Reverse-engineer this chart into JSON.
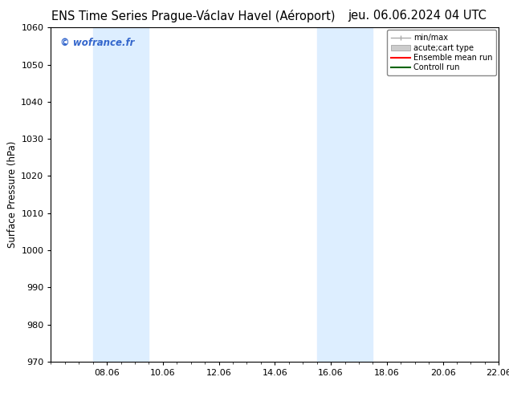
{
  "title_left": "ENS Time Series Prague-Václav Havel (Aéroport)",
  "title_right": "jeu. 06.06.2024 04 UTC",
  "ylabel": "Surface Pressure (hPa)",
  "ylim": [
    970,
    1060
  ],
  "yticks": [
    970,
    980,
    990,
    1000,
    1010,
    1020,
    1030,
    1040,
    1050,
    1060
  ],
  "xtick_labels": [
    "08.06",
    "10.06",
    "12.06",
    "14.06",
    "16.06",
    "18.06",
    "20.06",
    "22.06"
  ],
  "xtick_positions": [
    2,
    4,
    6,
    8,
    10,
    12,
    14,
    16
  ],
  "xlim": [
    0,
    16
  ],
  "shaded_bands": [
    {
      "x_start": 1.5,
      "x_end": 3.5
    },
    {
      "x_start": 9.5,
      "x_end": 11.5
    }
  ],
  "shaded_color": "#ddeeff",
  "watermark_text": "© wofrance.fr",
  "watermark_color": "#3366cc",
  "bg_color": "#ffffff",
  "plot_bg_color": "#ffffff",
  "grid_color": "#cccccc",
  "title_fontsize": 10.5,
  "axis_fontsize": 8.5,
  "tick_fontsize": 8
}
